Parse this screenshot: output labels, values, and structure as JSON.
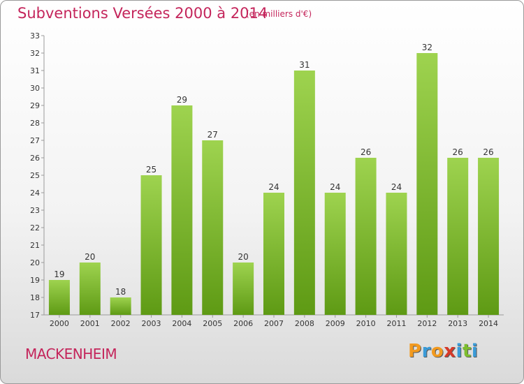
{
  "chart_data": {
    "type": "bar",
    "title": "Subventions Versées 2000 à 2014",
    "subtitle": "(en milliers d'€)",
    "categories": [
      "2000",
      "2001",
      "2002",
      "2003",
      "2004",
      "2005",
      "2006",
      "2007",
      "2008",
      "2009",
      "2010",
      "2011",
      "2012",
      "2013",
      "2014"
    ],
    "values": [
      19,
      20,
      18,
      25,
      29,
      27,
      20,
      24,
      31,
      24,
      26,
      24,
      32,
      26,
      26
    ],
    "ylim": [
      17,
      33
    ],
    "yticks": [
      17,
      18,
      19,
      20,
      21,
      22,
      23,
      24,
      25,
      26,
      27,
      28,
      29,
      30,
      31,
      32,
      33
    ],
    "grid": false,
    "xlabel": "",
    "ylabel": "",
    "bar_color": "#7fc12e",
    "title_color": "#c4255b"
  },
  "location": "MACKENHEIM",
  "logo": {
    "letters": [
      "P",
      "r",
      "o",
      "x",
      "i",
      "t",
      "i"
    ],
    "colors": [
      "#f29a1f",
      "#3a9bd8",
      "#f29a1f",
      "#d63a2a",
      "#3a9bd8",
      "#7dbd2e",
      "#3a9bd8"
    ]
  }
}
